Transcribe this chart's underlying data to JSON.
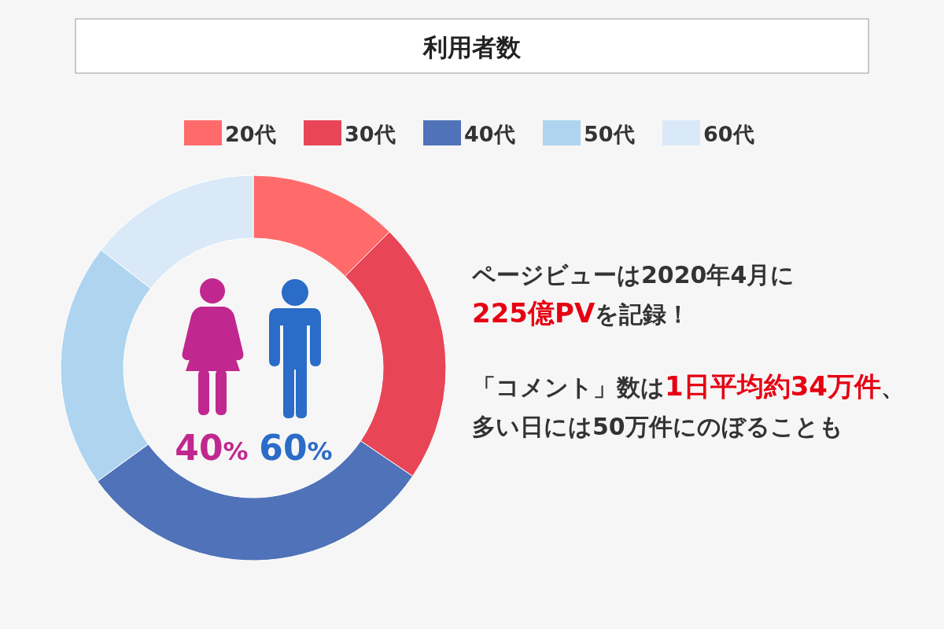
{
  "chart_data": {
    "type": "donut",
    "title": "利用者数",
    "categories": [
      "20代",
      "30代",
      "40代",
      "50代",
      "60代"
    ],
    "values": [
      12.5,
      22,
      30.5,
      20.5,
      14.5
    ],
    "colors": [
      "#ff6b6b",
      "#e84557",
      "#4f72b8",
      "#aed4ef",
      "#dae9f7"
    ],
    "legend": "top",
    "annotations": [
      "40%",
      "60%",
      "ページビューは2020年4月に",
      "225億PV",
      "を記録！",
      "「コメント」数は",
      "1日平均約34万件",
      "、",
      "多い日には50万件にのぼることも"
    ]
  }
}
